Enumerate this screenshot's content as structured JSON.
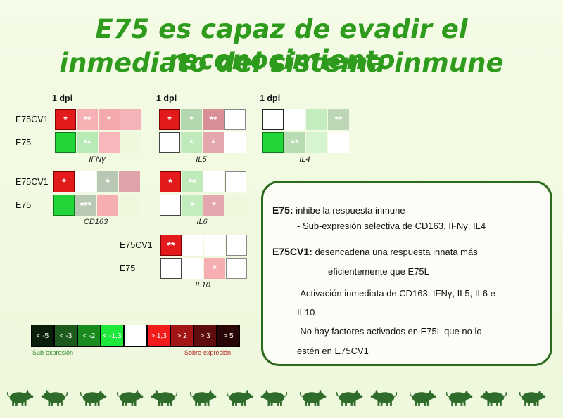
{
  "title": {
    "line1": "E75 es capaz de evadir el reconocimiento",
    "line2": "inmediato del sistema inmune"
  },
  "heatmaps": [
    {
      "gene": "IFNγ",
      "dpi": "1 dpi",
      "rows": [
        {
          "label": "E75CV1",
          "cells": [
            {
              "color": "#e31a1c",
              "mark": "*",
              "border": "#7a0000"
            },
            {
              "color": "#f7b0b4",
              "mark": "**"
            },
            {
              "color": "#f5a9ad",
              "mark": "*"
            },
            {
              "color": "#f5b4b8",
              "mark": ""
            }
          ]
        },
        {
          "label": "E75",
          "cells": [
            {
              "color": "#22d63a",
              "mark": "",
              "border": "#0f7a1c"
            },
            {
              "color": "#b8eab6",
              "mark": "**"
            },
            {
              "color": "#f7b8bb",
              "mark": ""
            },
            {
              "color": "#eef8dc",
              "mark": ""
            }
          ]
        }
      ]
    },
    {
      "gene": "IL5",
      "dpi": "1 dpi",
      "rows": [
        {
          "label": "",
          "cells": [
            {
              "color": "#e31a1c",
              "mark": "*",
              "border": "#7a0000"
            },
            {
              "color": "#b2d6ad",
              "mark": "*"
            },
            {
              "color": "#d98e96",
              "mark": "**"
            },
            {
              "color": "#ffffff",
              "mark": "",
              "border": "#888888"
            }
          ]
        },
        {
          "label": "",
          "cells": [
            {
              "color": "#ffffff",
              "mark": "",
              "border": "#444444"
            },
            {
              "color": "#bfeabb",
              "mark": "*"
            },
            {
              "color": "#e3a7ad",
              "mark": "*"
            },
            {
              "color": "#ffffff",
              "mark": ""
            }
          ]
        }
      ]
    },
    {
      "gene": "IL4",
      "dpi": "1 dpi",
      "rows": [
        {
          "label": "",
          "cells": [
            {
              "color": "#ffffff",
              "mark": "",
              "border": "#222222"
            },
            {
              "color": "#ffffff",
              "mark": ""
            },
            {
              "color": "#c3ecbf",
              "mark": ""
            },
            {
              "color": "#bcd6b6",
              "mark": "**"
            }
          ]
        },
        {
          "label": "",
          "cells": [
            {
              "color": "#22d63a",
              "mark": "",
              "border": "#0f7a1c"
            },
            {
              "color": "#b8dcb2",
              "mark": "**"
            },
            {
              "color": "#d6f4d2",
              "mark": ""
            },
            {
              "color": "#ffffff",
              "mark": ""
            }
          ]
        }
      ]
    },
    {
      "gene": "CD163",
      "dpi": "",
      "rows": [
        {
          "label": "E75CV1",
          "cells": [
            {
              "color": "#e31a1c",
              "mark": "*",
              "border": "#7a0000"
            },
            {
              "color": "#ffffff",
              "mark": ""
            },
            {
              "color": "#b9c8b4",
              "mark": "*"
            },
            {
              "color": "#dfa2a8",
              "mark": ""
            }
          ]
        },
        {
          "label": "E75",
          "cells": [
            {
              "color": "#22d63a",
              "mark": "",
              "border": "#0f7a1c"
            },
            {
              "color": "#b7c9b2",
              "mark": "***"
            },
            {
              "color": "#f7aeb3",
              "mark": ""
            },
            {
              "color": "#eef8dc",
              "mark": ""
            }
          ]
        }
      ]
    },
    {
      "gene": "IL6",
      "dpi": "",
      "rows": [
        {
          "label": "",
          "cells": [
            {
              "color": "#e31a1c",
              "mark": "*",
              "border": "#7a0000"
            },
            {
              "color": "#bfeabb",
              "mark": "**"
            },
            {
              "color": "#ffffff",
              "mark": ""
            },
            {
              "color": "#ffffff",
              "mark": "",
              "border": "#888888"
            }
          ]
        },
        {
          "label": "",
          "cells": [
            {
              "color": "#ffffff",
              "mark": "",
              "border": "#444444"
            },
            {
              "color": "#c3ecbf",
              "mark": "*"
            },
            {
              "color": "#e3a7ad",
              "mark": "*"
            },
            {
              "color": "#eef8dc",
              "mark": ""
            }
          ]
        }
      ]
    },
    {
      "gene": "IL10",
      "dpi": "",
      "rows": [
        {
          "label": "E75CV1",
          "cells": [
            {
              "color": "#e31a1c",
              "mark": "**",
              "border": "#7a0000"
            },
            {
              "color": "#ffffff",
              "mark": ""
            },
            {
              "color": "#ffffff",
              "mark": ""
            },
            {
              "color": "#ffffff",
              "mark": "",
              "border": "#888888"
            }
          ]
        },
        {
          "label": "E75",
          "cells": [
            {
              "color": "#ffffff",
              "mark": "",
              "border": "#444444"
            },
            {
              "color": "#ffffff",
              "mark": ""
            },
            {
              "color": "#f7aeb3",
              "mark": "*"
            },
            {
              "color": "#ffffff",
              "mark": "",
              "border": "#888888"
            }
          ]
        }
      ]
    }
  ],
  "legend": {
    "cells": [
      {
        "label": "< -5",
        "color": "#0a1f0a"
      },
      {
        "label": "< -3",
        "color": "#1d5a1d"
      },
      {
        "label": "< -2",
        "color": "#198a1e"
      },
      {
        "label": "< -1,3",
        "color": "#1ee83a"
      },
      {
        "label": "",
        "color": "#ffffff"
      },
      {
        "label": "> 1,3",
        "color": "#f21b1b"
      },
      {
        "label": "> 2",
        "color": "#a31616"
      },
      {
        "label": "> 3",
        "color": "#5e0c0c"
      },
      {
        "label": "> 5",
        "color": "#2a0505"
      }
    ],
    "sub_caption": "Sub-expresión",
    "sobre_caption": "Sobre-expresión",
    "sub_color": "#2a8a2a",
    "sobre_color": "#b02020"
  },
  "textbox": {
    "e75_head": "E75:",
    "e75_text": "inhibe la respuesta inmune",
    "e75_sub": "- Sub-expresión selectiva de CD163, IFNγ, IL4",
    "cv1_head": "E75CV1:",
    "cv1_text": "desencadena una respuesta innata más",
    "cv1_text2": "eficientemente que E75L",
    "bullet1a": "-Activación inmediata de CD163, IFNγ, IL5, IL6 e",
    "bullet1b": "IL10",
    "bullet2a": "-No hay factores activados en E75L que no lo",
    "bullet2b": "estén en E75CV1"
  },
  "footer": {
    "pig_count": 15,
    "pig_color": "#2f6b2a"
  }
}
